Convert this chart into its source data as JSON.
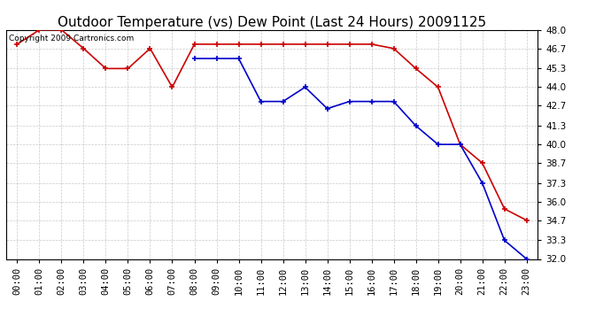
{
  "title": "Outdoor Temperature (vs) Dew Point (Last 24 Hours) 20091125",
  "copyright_text": "Copyright 2009 Cartronics.com",
  "x_labels": [
    "00:00",
    "01:00",
    "02:00",
    "03:00",
    "04:00",
    "05:00",
    "06:00",
    "07:00",
    "08:00",
    "09:00",
    "10:00",
    "11:00",
    "12:00",
    "13:00",
    "14:00",
    "15:00",
    "16:00",
    "17:00",
    "18:00",
    "19:00",
    "20:00",
    "21:00",
    "22:00",
    "23:00"
  ],
  "temp_red": [
    47.0,
    48.0,
    48.0,
    46.7,
    45.3,
    45.3,
    46.7,
    44.0,
    47.0,
    47.0,
    47.0,
    47.0,
    47.0,
    47.0,
    47.0,
    47.0,
    47.0,
    46.7,
    45.3,
    44.0,
    40.0,
    38.7,
    35.5,
    34.7
  ],
  "dew_blue": [
    null,
    null,
    null,
    null,
    null,
    null,
    null,
    null,
    46.0,
    46.0,
    46.0,
    43.0,
    43.0,
    44.0,
    42.5,
    43.0,
    43.0,
    43.0,
    41.3,
    40.0,
    40.0,
    37.3,
    33.3,
    32.0
  ],
  "ylim_min": 32.0,
  "ylim_max": 48.0,
  "yticks": [
    32.0,
    33.3,
    34.7,
    36.0,
    37.3,
    38.7,
    40.0,
    41.3,
    42.7,
    44.0,
    45.3,
    46.7,
    48.0
  ],
  "temp_color": "#cc0000",
  "dew_color": "#0000cc",
  "grid_color": "#bbbbbb",
  "bg_color": "#ffffff",
  "title_fontsize": 11,
  "axis_fontsize": 7.5,
  "copyright_fontsize": 6.5
}
